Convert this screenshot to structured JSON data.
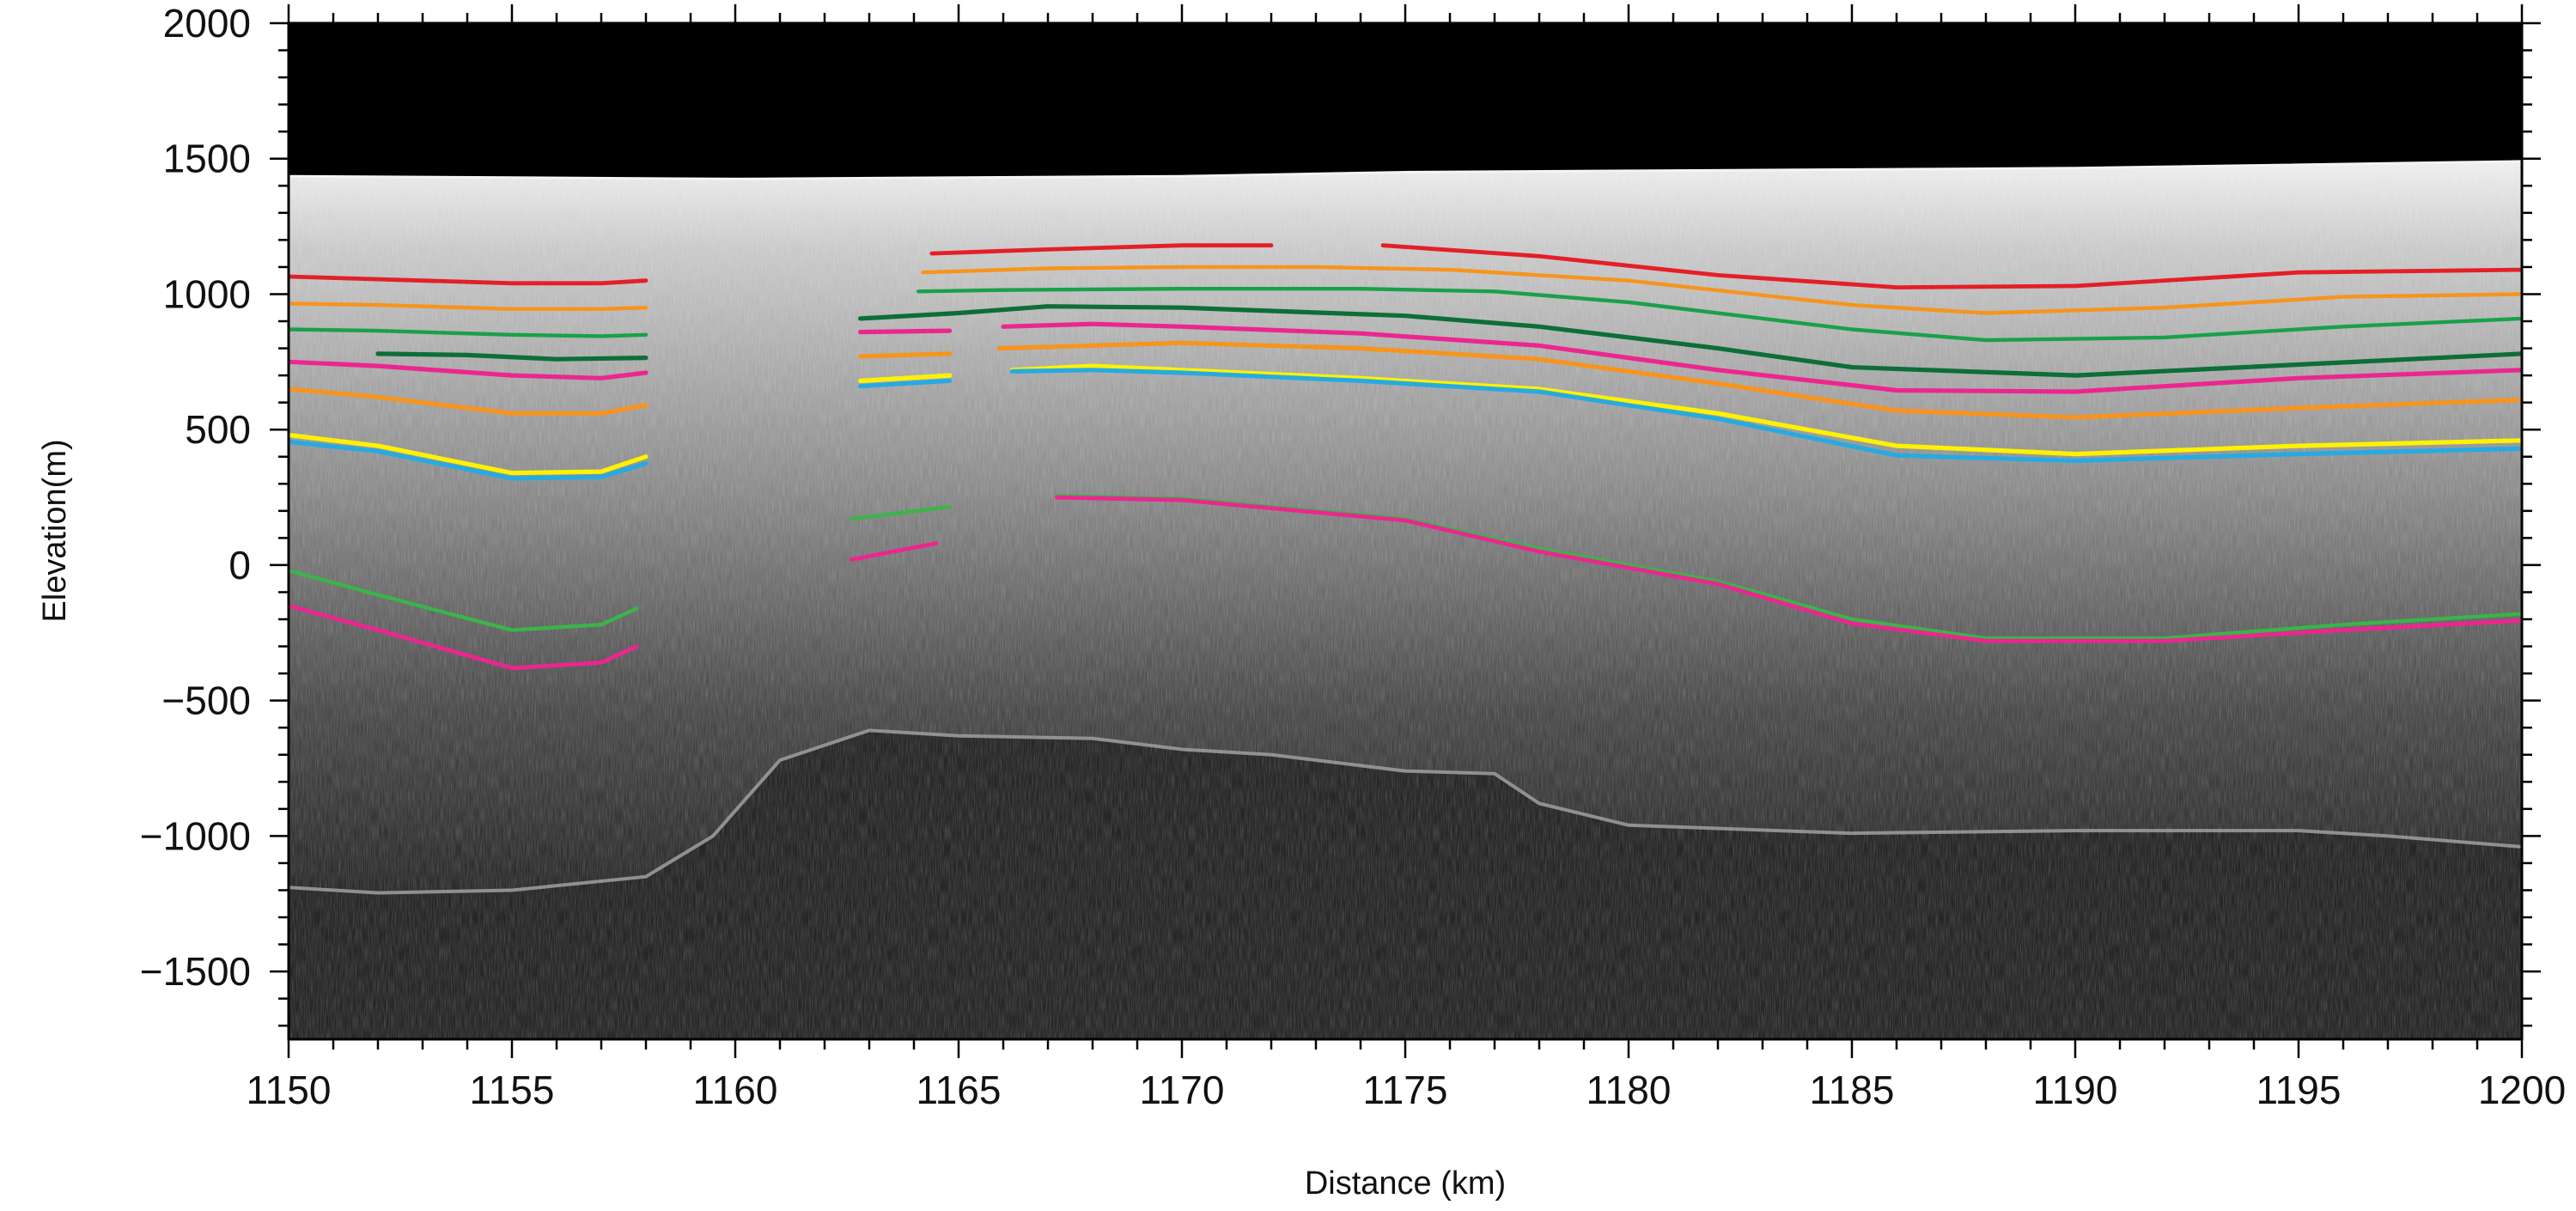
{
  "chart_data": {
    "type": "line",
    "title": "",
    "xlabel": "Distance (km)",
    "ylabel": "Elevation(m)",
    "xlim": [
      1150,
      1200
    ],
    "ylim": [
      -1750,
      2000
    ],
    "x_ticks": [
      1150,
      1155,
      1160,
      1165,
      1170,
      1175,
      1180,
      1185,
      1190,
      1195,
      1200
    ],
    "y_ticks": [
      2000,
      1500,
      1000,
      500,
      0,
      -500,
      -1000,
      -1500
    ],
    "x_tick_labels": [
      "1150",
      "1155",
      "1160",
      "1165",
      "1170",
      "1175",
      "1180",
      "1185",
      "1190",
      "1195",
      "1200"
    ],
    "y_tick_labels": [
      "2000",
      "1500",
      "1000",
      "500",
      "0",
      "−500",
      "−1000",
      "−1500"
    ],
    "background": "radar echogram (grayscale)",
    "grid": false,
    "legend": "none",
    "surface": {
      "x": [
        1150,
        1160,
        1170,
        1175,
        1180,
        1190,
        1200
      ],
      "y": [
        1435,
        1425,
        1435,
        1450,
        1455,
        1465,
        1490
      ]
    },
    "bed": {
      "x": [
        1150,
        1152,
        1155,
        1158,
        1159.5,
        1161,
        1163,
        1165,
        1168,
        1170,
        1172,
        1175,
        1177,
        1178,
        1180,
        1185,
        1190,
        1195,
        1197,
        1200
      ],
      "y": [
        -1190,
        -1210,
        -1200,
        -1150,
        -1000,
        -720,
        -610,
        -630,
        -640,
        -680,
        -700,
        -760,
        -770,
        -880,
        -960,
        -990,
        -980,
        -980,
        -1000,
        -1040
      ]
    },
    "series": [
      {
        "color": "#e41f26",
        "width": 2.4,
        "segments": [
          {
            "x": [
              1150,
              1152,
              1155,
              1157,
              1158
            ],
            "y": [
              1065,
              1055,
              1040,
              1040,
              1050
            ]
          },
          {
            "x": [
              1164.4,
              1167,
              1170,
              1172
            ],
            "y": [
              1150,
              1165,
              1180,
              1180
            ]
          },
          {
            "x": [
              1174.5,
              1178,
              1182,
              1186,
              1190,
              1195,
              1200
            ],
            "y": [
              1180,
              1140,
              1070,
              1025,
              1030,
              1080,
              1090
            ]
          }
        ]
      },
      {
        "color": "#f7941d",
        "width": 2.2,
        "segments": [
          {
            "x": [
              1150,
              1152,
              1155,
              1157,
              1158
            ],
            "y": [
              965,
              960,
              945,
              945,
              950
            ]
          },
          {
            "x": [
              1164.2,
              1167,
              1170,
              1173,
              1176,
              1180,
              1185,
              1188,
              1192,
              1196,
              1200
            ],
            "y": [
              1080,
              1095,
              1100,
              1100,
              1090,
              1050,
              960,
              930,
              950,
              990,
              1000
            ]
          }
        ]
      },
      {
        "color": "#19a04b",
        "width": 2.2,
        "segments": [
          {
            "x": [
              1150,
              1152,
              1155,
              1157,
              1158
            ],
            "y": [
              870,
              865,
              850,
              845,
              850
            ]
          },
          {
            "x": [
              1164.1,
              1166,
              1170,
              1174,
              1177,
              1180,
              1185,
              1188,
              1192,
              1196,
              1200
            ],
            "y": [
              1010,
              1015,
              1020,
              1020,
              1010,
              970,
              870,
              830,
              840,
              880,
              910
            ]
          }
        ]
      },
      {
        "color": "#0c6e38",
        "width": 2.6,
        "segments": [
          {
            "x": [
              1152,
              1154,
              1156,
              1158
            ],
            "y": [
              780,
              775,
              760,
              765
            ]
          },
          {
            "x": [
              1162.8,
              1165,
              1167,
              1170,
              1175,
              1178,
              1182,
              1185,
              1190,
              1195,
              1200
            ],
            "y": [
              910,
              930,
              955,
              950,
              920,
              880,
              800,
              730,
              700,
              740,
              780
            ]
          }
        ]
      },
      {
        "color": "#ec268f",
        "width": 2.6,
        "segments": [
          {
            "x": [
              1150,
              1152,
              1155,
              1157,
              1158
            ],
            "y": [
              750,
              735,
              700,
              690,
              710
            ]
          },
          {
            "x": [
              1162.8,
              1164.8
            ],
            "y": [
              860,
              865
            ]
          },
          {
            "x": [
              1166,
              1168,
              1170,
              1174,
              1178,
              1182,
              1186,
              1190,
              1195,
              1200
            ],
            "y": [
              880,
              890,
              880,
              855,
              810,
              720,
              645,
              640,
              690,
              720
            ]
          }
        ]
      },
      {
        "color": "#f7941d",
        "width": 2.6,
        "segments": [
          {
            "x": [
              1150,
              1152,
              1155,
              1157,
              1158
            ],
            "y": [
              650,
              620,
              560,
              560,
              590
            ]
          },
          {
            "x": [
              1162.8,
              1164.8
            ],
            "y": [
              770,
              780
            ]
          },
          {
            "x": [
              1165.9,
              1168,
              1170,
              1174,
              1178,
              1182,
              1186,
              1190,
              1195,
              1200
            ],
            "y": [
              800,
              810,
              820,
              800,
              760,
              670,
              570,
              545,
              580,
              610
            ]
          }
        ]
      },
      {
        "color": "#fff200",
        "width": 2.6,
        "segments": [
          {
            "x": [
              1150,
              1152,
              1155,
              1157,
              1158
            ],
            "y": [
              480,
              440,
              340,
              345,
              400
            ]
          },
          {
            "x": [
              1162.8,
              1164.8
            ],
            "y": [
              680,
              700
            ]
          },
          {
            "x": [
              1166.2,
              1168,
              1170,
              1174,
              1178,
              1182,
              1186,
              1190,
              1195,
              1200
            ],
            "y": [
              720,
              735,
              720,
              690,
              650,
              560,
              440,
              410,
              440,
              460
            ]
          }
        ]
      },
      {
        "color": "#27aae1",
        "width": 2.6,
        "segments": [
          {
            "x": [
              1150,
              1152,
              1155,
              1157,
              1158
            ],
            "y": [
              455,
              420,
              320,
              325,
              375
            ]
          },
          {
            "x": [
              1162.8,
              1164.8
            ],
            "y": [
              660,
              680
            ]
          },
          {
            "x": [
              1166.2,
              1168,
              1170,
              1174,
              1178,
              1182,
              1186,
              1190,
              1195,
              1200
            ],
            "y": [
              715,
              720,
              710,
              680,
              640,
              540,
              405,
              385,
              410,
              430
            ]
          }
        ]
      },
      {
        "color": "#3bb44a",
        "width": 2.2,
        "segments": [
          {
            "x": [
              1150,
              1152,
              1155,
              1157,
              1157.8
            ],
            "y": [
              -20,
              -110,
              -240,
              -220,
              -160
            ]
          },
          {
            "x": [
              1162.6,
              1164.8
            ],
            "y": [
              170,
              215
            ]
          },
          {
            "x": [
              1167.2,
              1170,
              1175,
              1178,
              1182,
              1185,
              1188,
              1192,
              1196,
              1200
            ],
            "y": [
              255,
              245,
              170,
              60,
              -60,
              -200,
              -270,
              -270,
              -220,
              -180
            ]
          }
        ]
      },
      {
        "color": "#ec268f",
        "width": 2.4,
        "segments": [
          {
            "x": [
              1150,
              1152,
              1155,
              1157,
              1157.8
            ],
            "y": [
              -150,
              -240,
              -380,
              -360,
              -300
            ]
          },
          {
            "x": [
              1162.6,
              1164.5
            ],
            "y": [
              20,
              80
            ]
          },
          {
            "x": [
              1167.2,
              1170,
              1175,
              1178,
              1182,
              1185,
              1188,
              1192,
              1196,
              1200
            ],
            "y": [
              250,
              240,
              165,
              50,
              -70,
              -215,
              -280,
              -280,
              -240,
              -205
            ]
          }
        ]
      }
    ]
  }
}
